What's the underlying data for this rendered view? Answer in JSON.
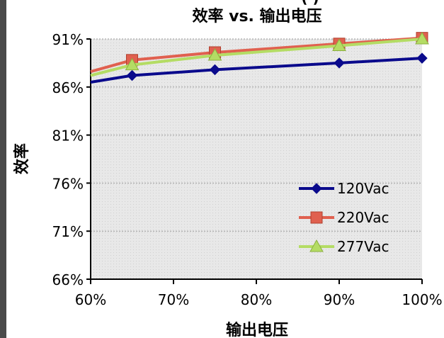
{
  "chart_data": {
    "type": "line",
    "title": "效率 vs. 输出电压",
    "top_partial_text": "(          )",
    "xlabel": "输出电压",
    "ylabel": "效率",
    "x": [
      65,
      75,
      90,
      100
    ],
    "x_ticks": [
      60,
      70,
      80,
      90,
      100
    ],
    "x_tick_labels": [
      "60%",
      "70%",
      "80%",
      "90%",
      "100%"
    ],
    "xlim": [
      60,
      100
    ],
    "y_ticks": [
      66,
      71,
      76,
      81,
      86,
      91
    ],
    "y_tick_labels": [
      "66%",
      "71%",
      "76%",
      "81%",
      "86%",
      "91%"
    ],
    "ylim": [
      66,
      91
    ],
    "grid": true,
    "legend_position": "right-bottom",
    "series": [
      {
        "name": "120Vac",
        "color": "#0a0a8c",
        "marker": "diamond",
        "x_start": 60,
        "start": 86.5,
        "values": [
          87.2,
          87.8,
          88.5,
          89.0
        ]
      },
      {
        "name": "220Vac",
        "color": "#e0604f",
        "marker": "square",
        "x_start": 60,
        "start": 87.6,
        "values": [
          88.8,
          89.6,
          90.5,
          91.1
        ]
      },
      {
        "name": "277Vac",
        "color": "#b4dc64",
        "marker": "triangle",
        "x_start": 60,
        "start": 87.2,
        "values": [
          88.3,
          89.3,
          90.3,
          91.0
        ]
      }
    ]
  }
}
